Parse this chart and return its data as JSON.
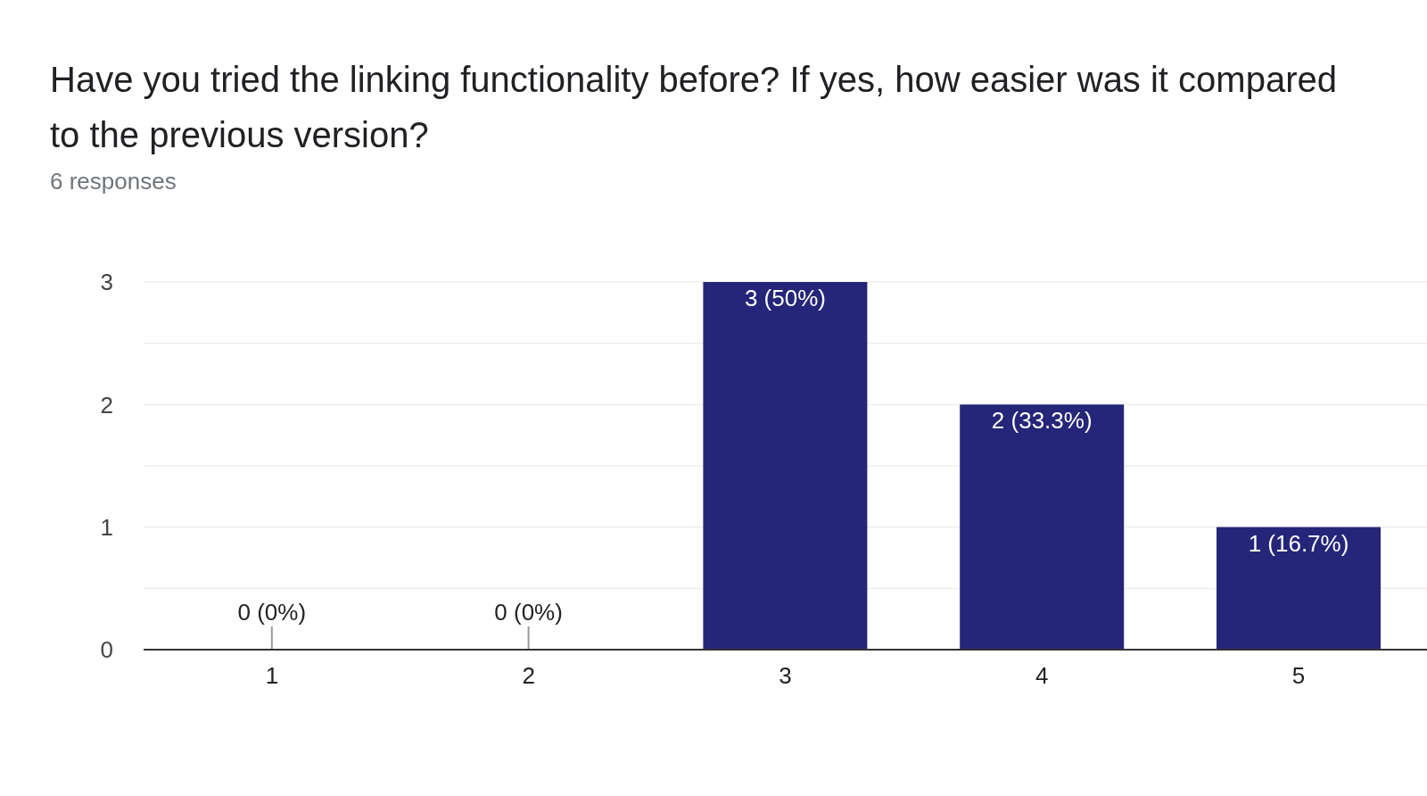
{
  "chart_data": {
    "type": "bar",
    "title": "Have you tried the linking functionality before? If yes, how easier was it compared to the previous version?",
    "subtitle": "6 responses",
    "categories": [
      "1",
      "2",
      "3",
      "4",
      "5"
    ],
    "values": [
      0,
      0,
      3,
      2,
      1
    ],
    "value_labels": [
      "0 (0%)",
      "0 (0%)",
      "3 (50%)",
      "2 (33.3%)",
      "1 (16.7%)"
    ],
    "color": "#252579",
    "ylim": [
      0,
      3
    ],
    "yticks": [
      0,
      {
        "value": 0.5,
        "label": null
      },
      1,
      {
        "value": 1.5,
        "label": null
      },
      2,
      {
        "value": 2.5,
        "label": null
      },
      3
    ],
    "grid": "y",
    "legend": false
  }
}
